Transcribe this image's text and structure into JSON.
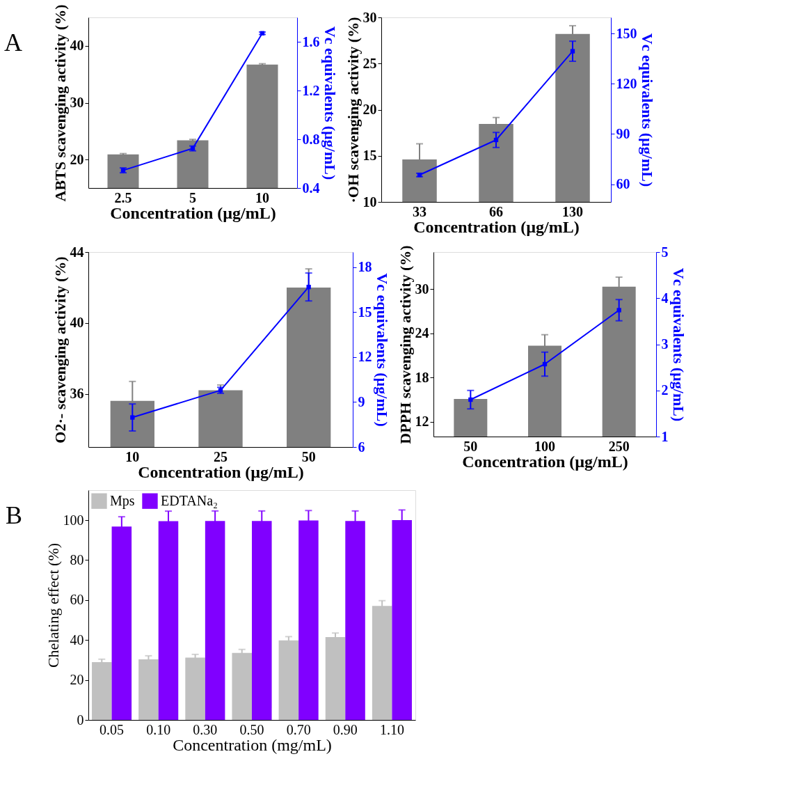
{
  "chart_data": [
    {
      "type": "bar",
      "annotations": [
        "A"
      ],
      "categories": [
        "2.5",
        "5",
        "10"
      ],
      "xlabel": "Concentration (µg/mL)",
      "ylabel": "ABTS scavenging activity (%)",
      "y2label": "Vc equivalents (µg/mL)",
      "ylim": [
        15,
        45
      ],
      "yticks": [
        20,
        30,
        40
      ],
      "y2lim": [
        0.4,
        1.8
      ],
      "y2ticks": [
        0.4,
        0.8,
        1.2,
        1.6
      ],
      "series": [
        {
          "color": "#808080",
          "values": [
            20.9,
            23.4,
            36.7
          ],
          "errors": [
            0.15,
            0.15,
            0.15
          ]
        },
        {
          "type": "line",
          "axis": "y2",
          "marker": "square",
          "color": "#0000ff",
          "values": [
            0.545,
            0.725,
            1.67
          ],
          "errors": [
            0.02,
            0.02,
            0.01
          ]
        }
      ]
    },
    {
      "type": "bar",
      "categories": [
        "33",
        "66",
        "130"
      ],
      "xlabel": "Concentration (µg/mL)",
      "ylabel": "·OH scavenging activity (%)",
      "y2label": "Vc equivalents (µg/mL)",
      "ylim": [
        10,
        30
      ],
      "yticks": [
        10,
        15,
        20,
        25,
        30
      ],
      "y2lim": [
        49.4,
        159.6
      ],
      "y2ticks": [
        60,
        90,
        120,
        150
      ],
      "series": [
        {
          "color": "#808080",
          "values": [
            14.6,
            18.45,
            28.2
          ],
          "errors": [
            1.7,
            0.7,
            0.9
          ]
        },
        {
          "type": "line",
          "axis": "y2",
          "marker": "square",
          "color": "#0000ff",
          "values": [
            65.5,
            86.4,
            139.4
          ],
          "errors": [
            1,
            4.5,
            6
          ]
        }
      ]
    },
    {
      "type": "bar",
      "categories": [
        "10",
        "25",
        "50"
      ],
      "xlabel": "Concentration (µg/mL)",
      "ylabel": "O2·- scavenging activity (%)",
      "y2label": "Vc equivalents (µg/mL)",
      "ylim": [
        33,
        44
      ],
      "yticks": [
        36,
        40,
        44
      ],
      "y2lim": [
        6,
        19
      ],
      "y2ticks": [
        6,
        9,
        12,
        15,
        18
      ],
      "series": [
        {
          "color": "#808080",
          "values": [
            35.6,
            36.2,
            42.0
          ],
          "errors": [
            1.1,
            0.3,
            1.05
          ]
        },
        {
          "type": "line",
          "axis": "y2",
          "marker": "square",
          "color": "#0000ff",
          "values": [
            7.97,
            9.78,
            16.67
          ],
          "errors": [
            0.9,
            0.2,
            0.93
          ]
        }
      ]
    },
    {
      "type": "bar",
      "categories": [
        "50",
        "100",
        "250"
      ],
      "xlabel": "Concentration (µg/mL)",
      "ylabel": "DPPH scavenging activity (%)",
      "y2label": "Vc equivalents (µg/mL)",
      "ylim": [
        10,
        35
      ],
      "yticks": [
        12,
        18,
        24,
        30
      ],
      "y2lim": [
        1,
        5
      ],
      "y2ticks": [
        1,
        2,
        3,
        4,
        5
      ],
      "series": [
        {
          "color": "#808080",
          "values": [
            15.1,
            22.3,
            30.3
          ],
          "errors": [
            null,
            1.5,
            1.3
          ]
        },
        {
          "type": "line",
          "axis": "y2",
          "marker": "square",
          "color": "#0000ff",
          "values": [
            1.8,
            2.57,
            3.74
          ],
          "errors": [
            0.2,
            0.26,
            0.23
          ]
        }
      ]
    },
    {
      "type": "bar",
      "annotations": [
        "B"
      ],
      "categories": [
        "0.05",
        "0.10",
        "0.30",
        "0.50",
        "0.70",
        "0.90",
        "1.10"
      ],
      "xlabel": "Concentration (mg/mL)",
      "ylabel": "Chelating effect (%)",
      "ylim": [
        0,
        115
      ],
      "yticks": [
        0,
        20,
        40,
        60,
        80,
        100
      ],
      "legend": "top left",
      "series": [
        {
          "name": "Mps",
          "color": "#c0c0c0",
          "values": [
            28.9,
            30.3,
            31.2,
            33.5,
            39.8,
            41.5,
            57.1
          ],
          "errors": [
            1.5,
            1.8,
            1.6,
            1.8,
            1.9,
            2.0,
            2.6
          ]
        },
        {
          "name": "EDTANa₂",
          "color": "#8000ff",
          "values": [
            96.8,
            99.5,
            99.6,
            99.6,
            99.8,
            99.6,
            100
          ],
          "errors": [
            4.9,
            5,
            5,
            5,
            5,
            5,
            5.1
          ]
        }
      ]
    }
  ]
}
